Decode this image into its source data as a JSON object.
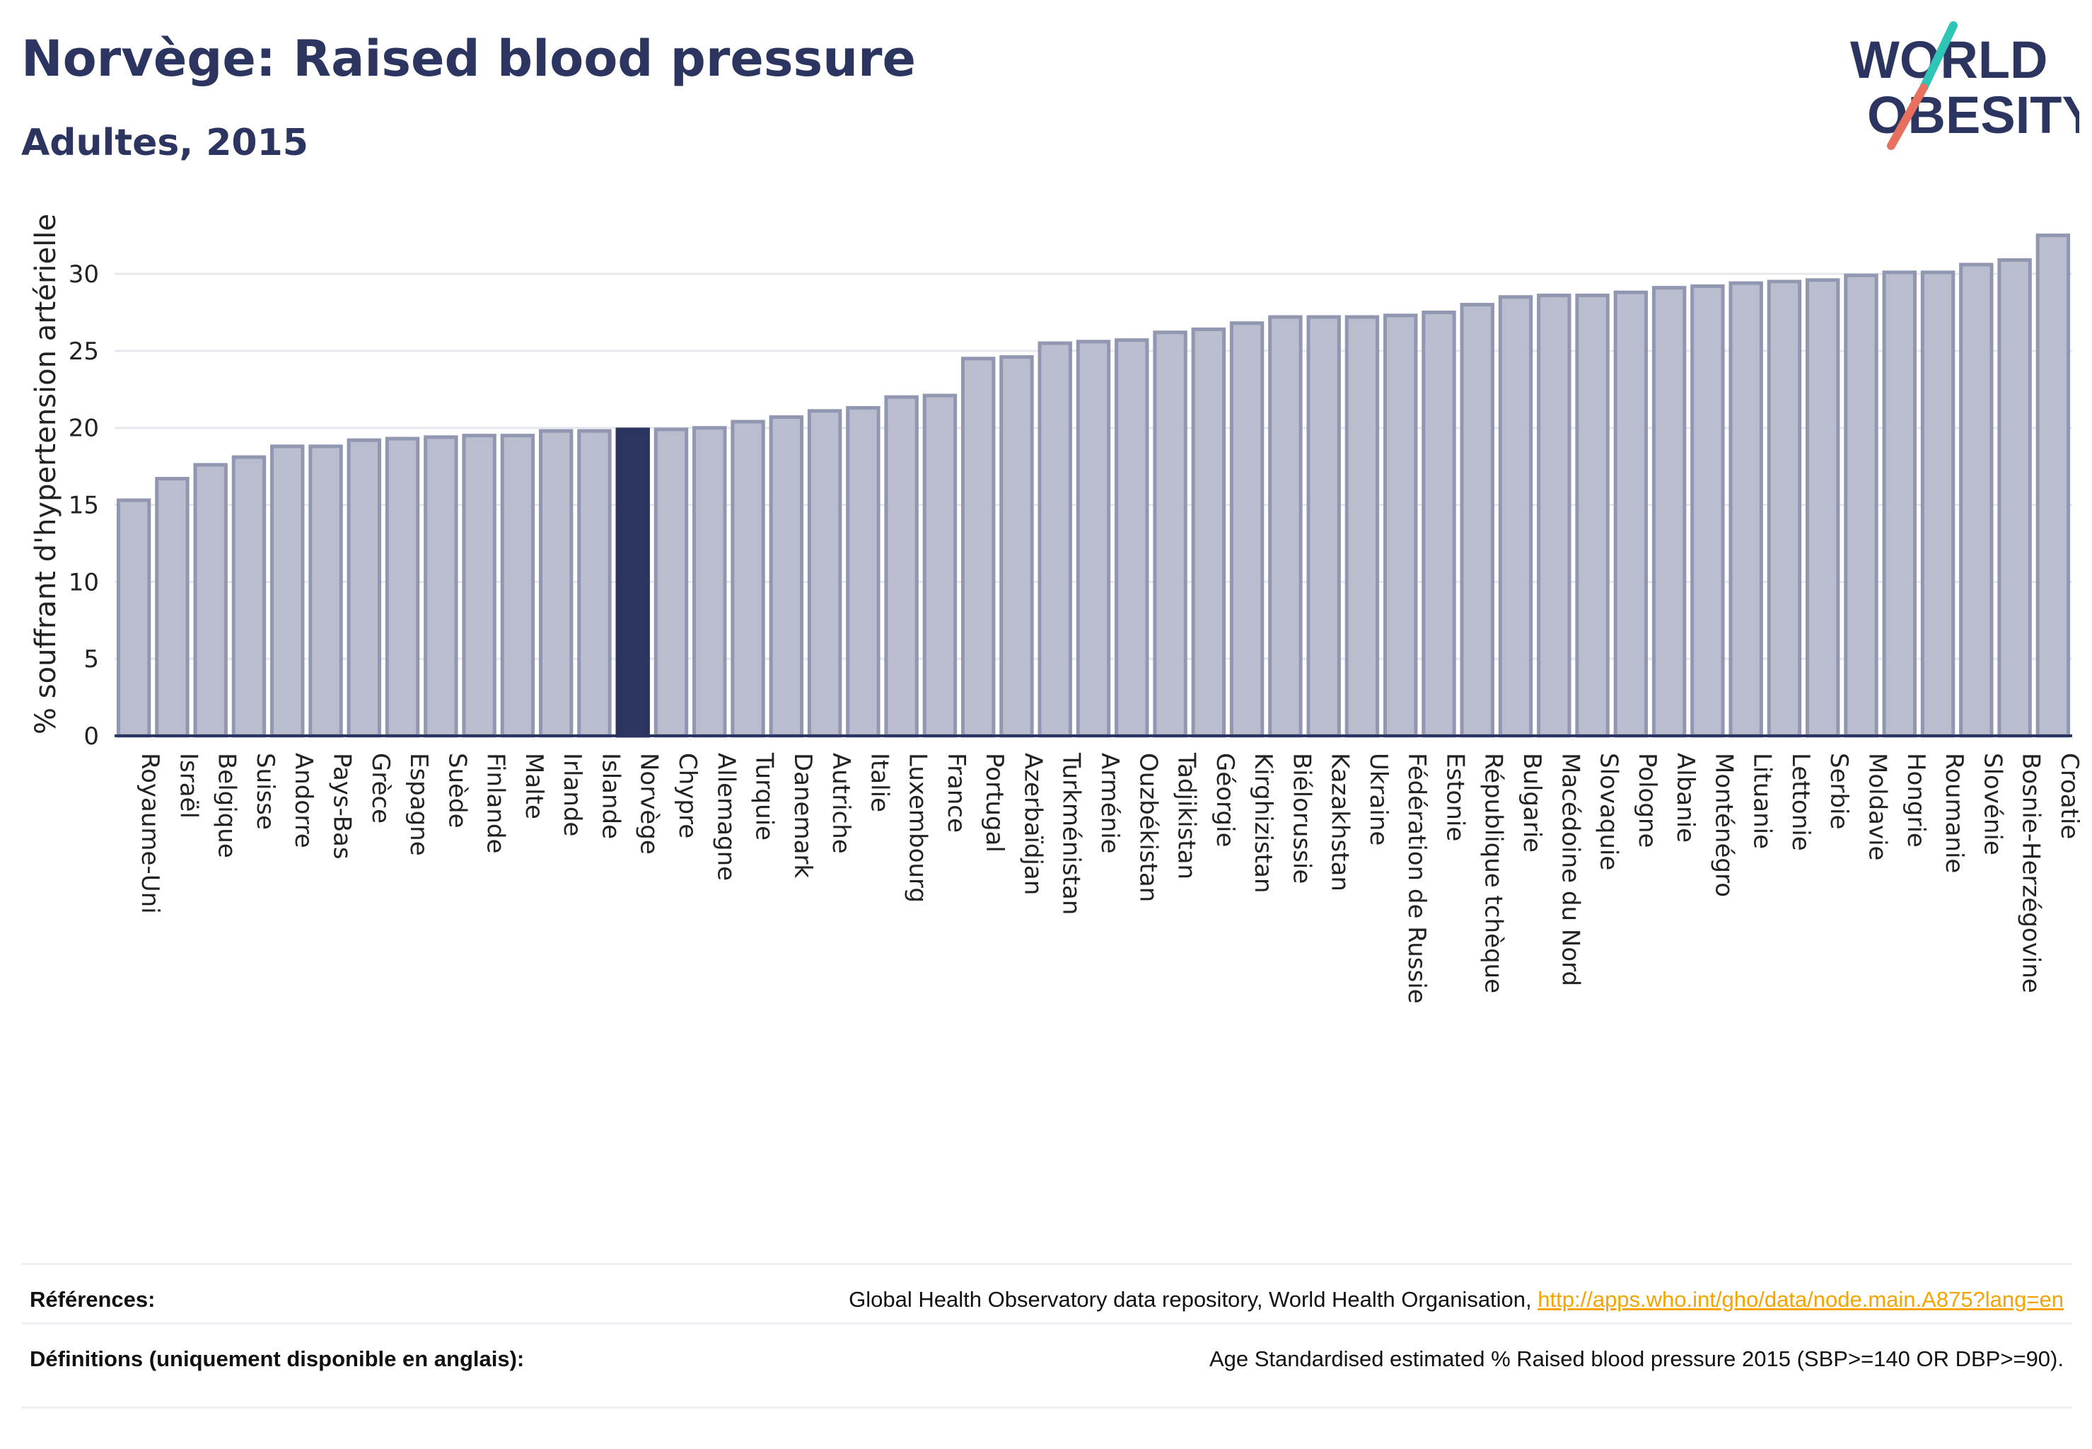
{
  "title": "Norvège: Raised blood pressure",
  "subtitle": "Adultes, 2015",
  "logo": {
    "line1": "WORLD",
    "line2": "OBESITY",
    "accent_teal": "#2ec4b6",
    "accent_coral": "#e8705f"
  },
  "colors": {
    "bar": "#b9bdcd",
    "bar_stroke": "#9196b1",
    "highlight": "#2b3560",
    "grid": "#e6e8ee",
    "text": "#2b3560"
  },
  "chart_data": {
    "type": "bar",
    "ylabel": "% souffrant d'hypertension artérielle",
    "ylim": [
      0,
      34
    ],
    "yticks": [
      0,
      5,
      10,
      15,
      20,
      25,
      30
    ],
    "highlight": "Norvège",
    "categories": [
      "Royaume-Uni",
      "Israël",
      "Belgique",
      "Suisse",
      "Andorre",
      "Pays-Bas",
      "Grèce",
      "Espagne",
      "Suède",
      "Finlande",
      "Malte",
      "Irlande",
      "Islande",
      "Norvège",
      "Chypre",
      "Allemagne",
      "Turquie",
      "Danemark",
      "Autriche",
      "Italie",
      "Luxembourg",
      "France",
      "Portugal",
      "Azerbaïdjan",
      "Turkménistan",
      "Arménie",
      "Ouzbékistan",
      "Tadjikistan",
      "Géorgie",
      "Kirghizistan",
      "Biélorussie",
      "Kazakhstan",
      "Ukraine",
      "Fédération de Russie",
      "Estonie",
      "République tchèque",
      "Bulgarie",
      "Macédoine du Nord",
      "Slovaquie",
      "Pologne",
      "Albanie",
      "Monténégro",
      "Lituanie",
      "Lettonie",
      "Serbie",
      "Moldavie",
      "Hongrie",
      "Roumanie",
      "Slovénie",
      "Bosnie-Herzégovine",
      "Croatie"
    ],
    "values": [
      15.3,
      16.7,
      17.6,
      18.1,
      18.8,
      18.8,
      19.2,
      19.3,
      19.4,
      19.5,
      19.5,
      19.8,
      19.8,
      19.9,
      19.9,
      20.0,
      20.4,
      20.7,
      21.1,
      21.3,
      22.0,
      22.1,
      24.5,
      24.6,
      25.5,
      25.6,
      25.7,
      26.2,
      26.4,
      26.8,
      27.2,
      27.2,
      27.2,
      27.3,
      27.5,
      28.0,
      28.5,
      28.6,
      28.6,
      28.8,
      29.1,
      29.2,
      29.4,
      29.5,
      29.6,
      29.9,
      30.1,
      30.1,
      30.6,
      30.9,
      32.5
    ]
  },
  "references": {
    "label": "Références:",
    "text": "Global Health Observatory data repository, World Health Organisation,",
    "link": "http://apps.who.int/gho/data/node.main.A875?lang=en"
  },
  "definitions": {
    "label": "Définitions (uniquement disponible en anglais):",
    "text": "Age Standardised estimated % Raised blood pressure 2015 (SBP>=140 OR DBP>=90)."
  }
}
